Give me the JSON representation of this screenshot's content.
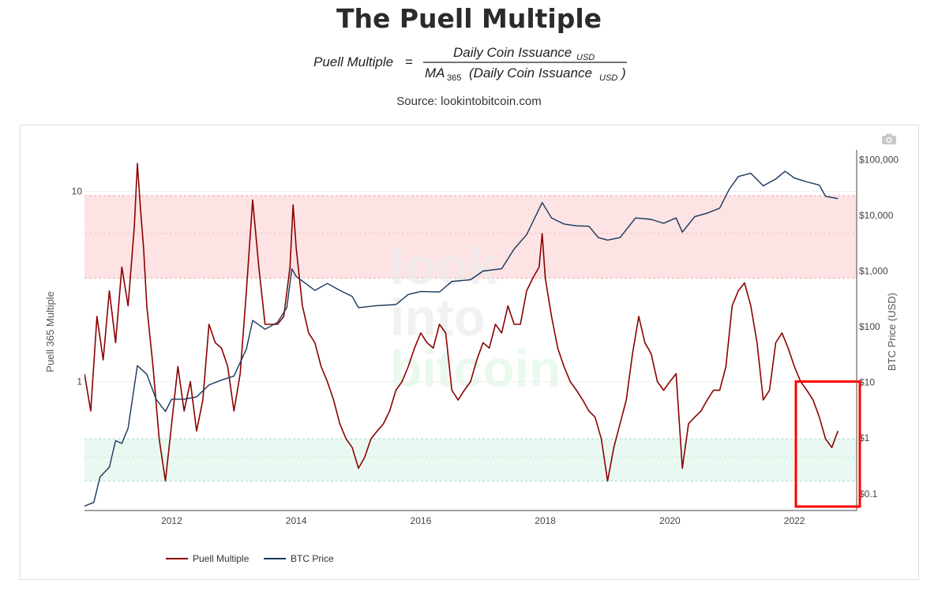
{
  "page": {
    "title": "The Puell Multiple",
    "source": "Source: lookintobitcoin.com"
  },
  "formula": {
    "lhs": "Puell Multiple",
    "equals": "=",
    "numerator": "Daily Coin Issuance",
    "numerator_sub": "USD",
    "denominator_prefix": "MA",
    "denominator_prefix_sub": "365",
    "denominator_body": "(Daily Coin Issuance",
    "denominator_sub": "USD",
    "denominator_close": ")"
  },
  "toolbar": {
    "camera_icon": "camera-icon"
  },
  "watermark": {
    "line1": "look",
    "line2": "into",
    "line3": "bitcoin"
  },
  "colors": {
    "puell": "#8b0000",
    "puell_in_band": "#b07a72",
    "btc": "#17365d",
    "red_band": "#fde3e4",
    "green_band": "#e9f9f1",
    "highlight": "#ff0000"
  },
  "chart_data": {
    "type": "line",
    "legend": {
      "position": "bottom-left",
      "items": [
        "Puell Multiple",
        "BTC Price"
      ]
    },
    "x_axis": {
      "range": [
        2010.6,
        2023.0
      ],
      "ticks": [
        "2012",
        "2014",
        "2016",
        "2018",
        "2020",
        "2022"
      ],
      "tick_values": [
        2012,
        2014,
        2016,
        2018,
        2020,
        2022
      ]
    },
    "y_left": {
      "label": "Puell 365 Multiple",
      "scale": "log",
      "range": [
        0.21,
        16.5
      ],
      "ticks": [
        "10",
        "1"
      ],
      "tick_values": [
        10,
        1
      ]
    },
    "y_right": {
      "label": "BTC Price (USD)",
      "scale": "log",
      "range": [
        0.05,
        150000
      ],
      "ticks": [
        "$100,000",
        "$10,000",
        "$1,000",
        "$100",
        "$10",
        "$1",
        "$0.1"
      ],
      "tick_values": [
        100000,
        10000,
        1000,
        100,
        10,
        1,
        0.1
      ]
    },
    "bands": [
      {
        "name": "red-zone",
        "axis": "y_left",
        "from": 3.5,
        "to": 9.5
      },
      {
        "name": "green-zone",
        "axis": "y_left",
        "from": 0.3,
        "to": 0.5
      }
    ],
    "band_guides": [
      6.0,
      0.4
    ],
    "highlight_box": {
      "x_from": 2022.1,
      "x_to": 2023.0,
      "y_from": 0.2,
      "y_to": 1.0
    },
    "series": [
      {
        "name": "Puell Multiple",
        "axis": "y_left",
        "x": [
          2010.6,
          2010.7,
          2010.8,
          2010.9,
          2011.0,
          2011.1,
          2011.2,
          2011.3,
          2011.4,
          2011.45,
          2011.5,
          2011.55,
          2011.6,
          2011.7,
          2011.8,
          2011.9,
          2012.0,
          2012.1,
          2012.2,
          2012.3,
          2012.4,
          2012.5,
          2012.6,
          2012.7,
          2012.8,
          2012.9,
          2013.0,
          2013.1,
          2013.2,
          2013.3,
          2013.4,
          2013.5,
          2013.6,
          2013.7,
          2013.8,
          2013.9,
          2013.95,
          2014.0,
          2014.1,
          2014.2,
          2014.3,
          2014.4,
          2014.5,
          2014.6,
          2014.7,
          2014.8,
          2014.9,
          2015.0,
          2015.1,
          2015.2,
          2015.3,
          2015.4,
          2015.5,
          2015.6,
          2015.7,
          2015.8,
          2015.9,
          2016.0,
          2016.1,
          2016.2,
          2016.3,
          2016.4,
          2016.5,
          2016.6,
          2016.7,
          2016.8,
          2016.9,
          2017.0,
          2017.1,
          2017.2,
          2017.3,
          2017.4,
          2017.5,
          2017.6,
          2017.7,
          2017.8,
          2017.9,
          2017.95,
          2018.0,
          2018.1,
          2018.2,
          2018.3,
          2018.4,
          2018.5,
          2018.6,
          2018.7,
          2018.8,
          2018.9,
          2019.0,
          2019.1,
          2019.2,
          2019.3,
          2019.4,
          2019.5,
          2019.6,
          2019.7,
          2019.8,
          2019.9,
          2020.0,
          2020.1,
          2020.2,
          2020.3,
          2020.4,
          2020.5,
          2020.6,
          2020.7,
          2020.8,
          2020.9,
          2021.0,
          2021.1,
          2021.2,
          2021.3,
          2021.4,
          2021.5,
          2021.6,
          2021.7,
          2021.8,
          2021.9,
          2022.0,
          2022.1,
          2022.2,
          2022.3,
          2022.4,
          2022.5,
          2022.6,
          2022.7
        ],
        "values": [
          1.1,
          0.7,
          2.2,
          1.3,
          3.0,
          1.6,
          4.0,
          2.5,
          6.5,
          14.0,
          8.0,
          5.0,
          2.5,
          1.2,
          0.5,
          0.3,
          0.6,
          1.2,
          0.7,
          1.0,
          0.55,
          0.8,
          2.0,
          1.6,
          1.5,
          1.2,
          0.7,
          1.1,
          3.0,
          9.0,
          4.0,
          2.0,
          2.0,
          2.0,
          2.2,
          4.0,
          8.5,
          5.0,
          2.5,
          1.8,
          1.6,
          1.2,
          1.0,
          0.8,
          0.6,
          0.5,
          0.45,
          0.35,
          0.4,
          0.5,
          0.55,
          0.6,
          0.7,
          0.9,
          1.0,
          1.2,
          1.5,
          1.8,
          1.6,
          1.5,
          2.0,
          1.8,
          0.9,
          0.8,
          0.9,
          1.0,
          1.3,
          1.6,
          1.5,
          2.0,
          1.8,
          2.5,
          2.0,
          2.0,
          3.0,
          3.5,
          4.0,
          6.0,
          3.5,
          2.2,
          1.5,
          1.2,
          1.0,
          0.9,
          0.8,
          0.7,
          0.65,
          0.5,
          0.3,
          0.45,
          0.6,
          0.8,
          1.4,
          2.2,
          1.6,
          1.4,
          1.0,
          0.9,
          1.0,
          1.1,
          0.35,
          0.6,
          0.65,
          0.7,
          0.8,
          0.9,
          0.9,
          1.2,
          2.5,
          3.0,
          3.3,
          2.5,
          1.6,
          0.8,
          0.9,
          1.6,
          1.8,
          1.5,
          1.2,
          1.0,
          0.9,
          0.8,
          0.65,
          0.5,
          0.45,
          0.55
        ]
      },
      {
        "name": "BTC Price",
        "axis": "y_right",
        "x": [
          2010.6,
          2010.75,
          2010.85,
          2011.0,
          2011.1,
          2011.2,
          2011.3,
          2011.45,
          2011.6,
          2011.75,
          2011.9,
          2012.0,
          2012.2,
          2012.4,
          2012.6,
          2012.8,
          2013.0,
          2013.2,
          2013.3,
          2013.5,
          2013.7,
          2013.85,
          2013.93,
          2014.0,
          2014.15,
          2014.3,
          2014.5,
          2014.7,
          2014.9,
          2015.0,
          2015.3,
          2015.6,
          2015.8,
          2016.0,
          2016.3,
          2016.5,
          2016.8,
          2017.0,
          2017.3,
          2017.5,
          2017.7,
          2017.85,
          2017.95,
          2018.1,
          2018.3,
          2018.5,
          2018.7,
          2018.85,
          2019.0,
          2019.2,
          2019.45,
          2019.7,
          2019.9,
          2020.1,
          2020.2,
          2020.4,
          2020.6,
          2020.8,
          2020.95,
          2021.1,
          2021.3,
          2021.5,
          2021.7,
          2021.85,
          2022.0,
          2022.2,
          2022.4,
          2022.5,
          2022.7
        ],
        "values": [
          0.06,
          0.07,
          0.2,
          0.3,
          0.9,
          0.8,
          1.5,
          20,
          14,
          5,
          3,
          5,
          5,
          5.5,
          9,
          11,
          13,
          40,
          130,
          90,
          120,
          220,
          1100,
          800,
          600,
          450,
          600,
          450,
          350,
          220,
          240,
          250,
          380,
          430,
          420,
          650,
          700,
          1000,
          1100,
          2500,
          4500,
          10000,
          17000,
          9000,
          7000,
          6500,
          6400,
          4000,
          3600,
          4000,
          9000,
          8500,
          7200,
          9000,
          5000,
          9500,
          11000,
          13500,
          29000,
          50000,
          57000,
          34000,
          45000,
          62000,
          47000,
          40000,
          35000,
          22000,
          20000
        ]
      }
    ]
  }
}
